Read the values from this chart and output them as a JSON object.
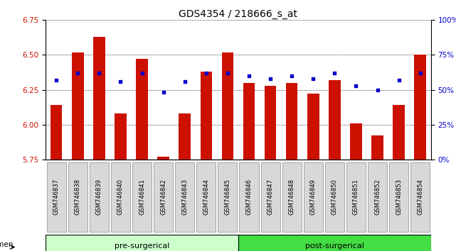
{
  "title": "GDS4354 / 218666_s_at",
  "samples": [
    "GSM746837",
    "GSM746838",
    "GSM746839",
    "GSM746840",
    "GSM746841",
    "GSM746842",
    "GSM746843",
    "GSM746844",
    "GSM746845",
    "GSM746846",
    "GSM746847",
    "GSM746848",
    "GSM746849",
    "GSM746850",
    "GSM746851",
    "GSM746852",
    "GSM746853",
    "GSM746854"
  ],
  "bar_values": [
    6.14,
    6.52,
    6.63,
    6.08,
    6.47,
    5.77,
    6.08,
    6.38,
    6.52,
    6.3,
    6.28,
    6.3,
    6.22,
    6.32,
    6.01,
    5.92,
    6.14,
    6.5
  ],
  "percentile_values": [
    57,
    62,
    62,
    56,
    62,
    48,
    56,
    62,
    62,
    60,
    58,
    60,
    58,
    62,
    53,
    50,
    57,
    62
  ],
  "ymin": 5.75,
  "ymax": 6.75,
  "pmin": 0,
  "pmax": 100,
  "bar_color": "#cc1100",
  "dot_color": "#0000cc",
  "bg_color": "#ffffff",
  "plot_bg_color": "#ffffff",
  "pre_surgical_count": 9,
  "post_surgical_count": 9,
  "pre_label": "pre-surgerical",
  "post_label": "post-surgerical",
  "group_bar_light": "#ccffcc",
  "group_bar_dark": "#44dd44",
  "tick_bg_color": "#d8d8d8",
  "tick_label_size": 6.0,
  "ytick_fontsize": 7.5,
  "title_fontsize": 10
}
